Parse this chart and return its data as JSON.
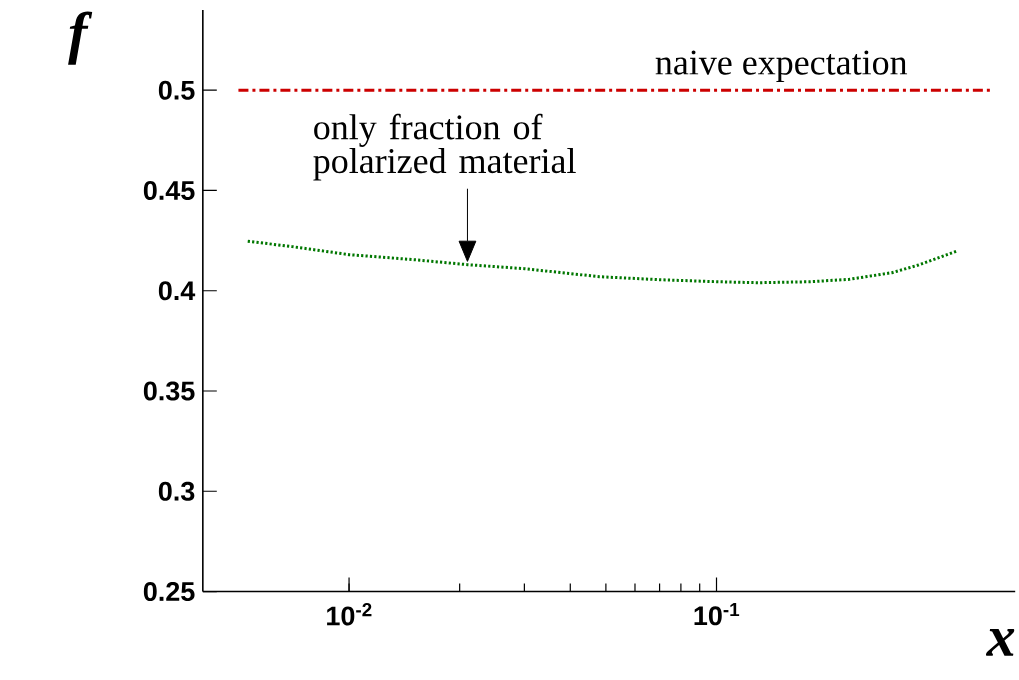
{
  "chart_data": {
    "type": "line",
    "xlabel": "x",
    "ylabel": "f",
    "log": "x",
    "xlim": [
      0.004,
      0.65
    ],
    "ylim": [
      0.25,
      0.54
    ],
    "xticks": [
      {
        "value": 0.01,
        "label": "10$^{-2}$"
      },
      {
        "value": 0.1,
        "label": "10$^{-1}$"
      }
    ],
    "yticks": [
      0.25,
      0.3,
      0.35,
      0.4,
      0.45,
      0.5
    ],
    "grid": false,
    "series": [
      {
        "color": "#cc0000",
        "line_style": "dashdot",
        "x": [
          0.005,
          0.56
        ],
        "values": [
          0.5,
          0.5
        ]
      },
      {
        "color": "#007700",
        "line_style": "dotted",
        "x": [
          0.0053,
          0.007,
          0.01,
          0.015,
          0.021,
          0.03,
          0.048,
          0.07,
          0.1,
          0.13,
          0.18,
          0.23,
          0.3,
          0.35,
          0.45
        ],
        "values": [
          0.4247,
          0.422,
          0.418,
          0.4155,
          0.413,
          0.411,
          0.407,
          0.4055,
          0.4045,
          0.404,
          0.4045,
          0.4057,
          0.409,
          0.4125,
          0.4197
        ]
      }
    ],
    "annotations": [
      {
        "text": "naive expectation",
        "x": 0.15,
        "y": 0.5
      },
      {
        "text": "only fraction of polarized material",
        "x": 0.021,
        "y": 0.413
      }
    ]
  }
}
